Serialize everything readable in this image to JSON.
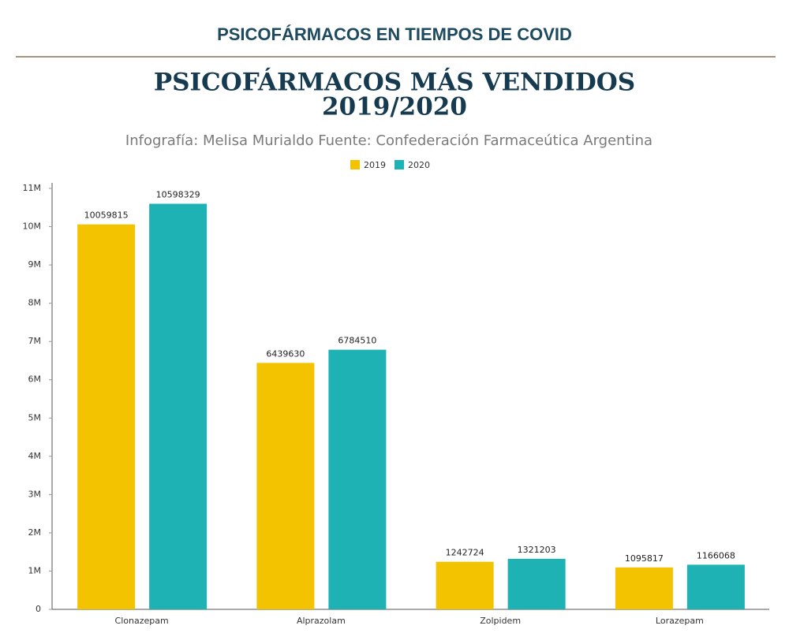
{
  "header": {
    "title": "PSICOFÁRMACOS EN TIEMPOS DE COVID"
  },
  "chart_data": {
    "type": "bar",
    "title": [
      "PSICOFÁRMACOS MÁS VENDIDOS",
      "2019/2020"
    ],
    "subtitle": "Infografía: Melisa Murialdo Fuente: Confederación Farmacеútica Argentina",
    "categories": [
      "Clonazepam",
      "Alprazolam",
      "Zolpidem",
      "Lorazepam"
    ],
    "series": [
      {
        "name": "2019",
        "color": "#f4c300",
        "values": [
          10059815,
          6439630,
          1242724,
          1095817
        ]
      },
      {
        "name": "2020",
        "color": "#1fb2b4",
        "values": [
          10598329,
          6784510,
          1321203,
          1166068
        ]
      }
    ],
    "ylim": [
      0,
      11000000
    ],
    "yticks": [
      0,
      {
        "value": 1000000,
        "label": "1M"
      },
      {
        "value": 2000000,
        "label": "2M"
      },
      {
        "value": 3000000,
        "label": "3M"
      },
      {
        "value": 4000000,
        "label": "4M"
      },
      {
        "value": 5000000,
        "label": "5M"
      },
      {
        "value": 6000000,
        "label": "6M"
      },
      {
        "value": 7000000,
        "label": "7M"
      },
      {
        "value": 8000000,
        "label": "8M"
      },
      {
        "value": 9000000,
        "label": "9M"
      },
      {
        "value": 10000000,
        "label": "10M"
      },
      {
        "value": 11000000,
        "label": "11M"
      }
    ],
    "legend": "top"
  }
}
